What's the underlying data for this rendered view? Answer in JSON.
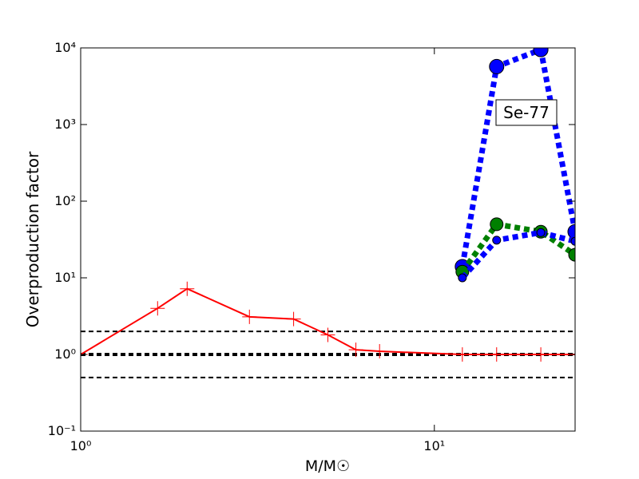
{
  "chart_data": {
    "type": "line",
    "annotation": "Se-77",
    "xlabel": "M/M☉",
    "ylabel": "Overproduction factor",
    "xscale": "log",
    "yscale": "log",
    "xlim": [
      1,
      25
    ],
    "ylim": [
      0.1,
      10000
    ],
    "xticks": [
      {
        "value": 1,
        "label": "10⁰"
      },
      {
        "value": 10,
        "label": "10¹"
      }
    ],
    "yticks": [
      {
        "value": 0.1,
        "label": "10⁻¹"
      },
      {
        "value": 1,
        "label": "10⁰"
      },
      {
        "value": 10,
        "label": "10¹"
      },
      {
        "value": 100,
        "label": "10²"
      },
      {
        "value": 1000,
        "label": "10³"
      },
      {
        "value": 10000,
        "label": "10⁴"
      }
    ],
    "reference_lines": [
      0.5,
      1,
      2
    ],
    "reference_line_widths": [
      2,
      4,
      2
    ],
    "series": [
      {
        "color": "#ff0000",
        "linestyle": "solid",
        "marker": "plus",
        "marker_size": 9,
        "x": [
          1,
          1.65,
          2,
          3,
          4,
          5,
          6,
          7,
          12,
          15,
          20,
          25
        ],
        "values": [
          1,
          4,
          7.2,
          3.1,
          2.9,
          1.8,
          1.15,
          1.1,
          1,
          1,
          1,
          1
        ]
      },
      {
        "color": "#0000ff",
        "linestyle": "dotted",
        "marker": "circle",
        "marker_size": 9,
        "x": [
          12,
          15,
          20,
          25
        ],
        "values": [
          14,
          5700,
          9500,
          40
        ]
      },
      {
        "color": "#008000",
        "linestyle": "dotted",
        "marker": "circle",
        "marker_size": 8,
        "x": [
          12,
          15,
          20,
          25
        ],
        "values": [
          12,
          50,
          40,
          20
        ]
      },
      {
        "color": "#0000ff",
        "linestyle": "dotted",
        "marker": "circle",
        "marker_size": 5,
        "x": [
          12,
          15,
          20,
          25
        ],
        "values": [
          10,
          31,
          39,
          30
        ]
      }
    ]
  }
}
